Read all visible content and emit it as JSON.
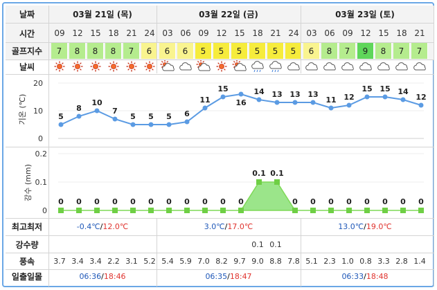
{
  "labels": {
    "date": "날짜",
    "time": "시간",
    "golf_index": "골프지수",
    "weather": "날씨",
    "minmax": "최고최저",
    "precip": "강수량",
    "wind": "풍속",
    "sunrise": "일출일몰"
  },
  "dates": [
    "03월 21일 (목)",
    "03월 22일 (금)",
    "03월 23일 (토)"
  ],
  "hours": [
    "09",
    "12",
    "15",
    "18",
    "21",
    "24",
    "03",
    "06",
    "09",
    "12",
    "15",
    "18",
    "21",
    "24",
    "03",
    "06",
    "09",
    "12",
    "15",
    "18",
    "21"
  ],
  "golf_index": [
    "7",
    "8",
    "8",
    "8",
    "7",
    "6",
    "6",
    "6",
    "5",
    "5",
    "5",
    "5",
    "5",
    "5",
    "6",
    "8",
    "7",
    "9",
    "8",
    "7",
    "7"
  ],
  "golf_colors": [
    "#b5ec8e",
    "#b5ec8e",
    "#b5ec8e",
    "#b5ec8e",
    "#b5ec8e",
    "#f9f48f",
    "#f9f48f",
    "#f9f48f",
    "#f6ec3c",
    "#f6ec3c",
    "#f6ec3c",
    "#f6ec3c",
    "#f6ec3c",
    "#f6ec3c",
    "#f9f48f",
    "#b5ec8e",
    "#b5ec8e",
    "#5fd65a",
    "#b5ec8e",
    "#b5ec8e",
    "#b5ec8e"
  ],
  "weather_icons": [
    "sun-icon",
    "sun-icon",
    "sun-icon",
    "sun-icon",
    "sun-icon",
    "sun-icon",
    "partly-cloudy-icon",
    "cloud-icon",
    "partly-cloudy-icon",
    "sun-icon",
    "partly-cloudy-icon",
    "rain-icon",
    "rain-icon",
    "cloud-icon",
    "cloud-icon",
    "cloud-icon",
    "cloud-icon",
    "cloud-icon",
    "cloud-icon",
    "cloud-icon",
    "cloud-icon"
  ],
  "temp_axis_label": "기온 (℃)",
  "precip_axis_label": "강수 (mm)",
  "chart_data": [
    {
      "type": "line",
      "x": [
        "09",
        "12",
        "15",
        "18",
        "21",
        "24",
        "03",
        "06",
        "09",
        "12",
        "15",
        "18",
        "21",
        "24",
        "03",
        "06",
        "09",
        "12",
        "15",
        "18",
        "21"
      ],
      "values": [
        5,
        8,
        10,
        7,
        5,
        5,
        5,
        6,
        11,
        15,
        16,
        14,
        13,
        13,
        13,
        11,
        12,
        15,
        15,
        14,
        12
      ],
      "ylabel": "기온 (℃)",
      "yticks": [
        "0",
        "10",
        "20"
      ],
      "ylim": [
        0,
        20
      ],
      "grid": true,
      "color": "#5b9be3"
    },
    {
      "type": "area",
      "x": [
        "09",
        "12",
        "15",
        "18",
        "21",
        "24",
        "03",
        "06",
        "09",
        "12",
        "15",
        "18",
        "21",
        "24",
        "03",
        "06",
        "09",
        "12",
        "15",
        "18",
        "21"
      ],
      "values": [
        0,
        0,
        0,
        0,
        0,
        0,
        0,
        0,
        0,
        0,
        0,
        0.1,
        0.1,
        0,
        0,
        0,
        0,
        0,
        0,
        0,
        0
      ],
      "value_labels": [
        "0",
        "0",
        "0",
        "0",
        "0",
        "0",
        "0",
        "0",
        "0",
        "0",
        "0",
        "0.1",
        "0.1",
        "0",
        "0",
        "0",
        "0",
        "0",
        "0",
        "0",
        "0"
      ],
      "ylabel": "강수 (mm)",
      "yticks": [
        "0",
        "0.1",
        "0.2"
      ],
      "ylim": [
        0,
        0.2
      ],
      "grid": true,
      "color": "#7ed957"
    }
  ],
  "minmax": [
    {
      "min": "-0.4℃",
      "sep": "/",
      "max": "12.0℃"
    },
    {
      "min": "3.0℃",
      "sep": "/",
      "max": "17.0℃"
    },
    {
      "min": "13.0℃",
      "sep": "/",
      "max": "19.0℃"
    }
  ],
  "precip_values": [
    "",
    "",
    "",
    "",
    "",
    "",
    "",
    "",
    "",
    "",
    "",
    "0.1",
    "0.1",
    "",
    "",
    "",
    "",
    "",
    "",
    "",
    ""
  ],
  "wind": [
    "3.7",
    "3.4",
    "3.4",
    "2.2",
    "3.1",
    "5.2",
    "5.4",
    "5.9",
    "7.0",
    "8.2",
    "9.7",
    "9.0",
    "8.8",
    "7.8",
    "5.1",
    "2.3",
    "1.0",
    "0.8",
    "3.3",
    "2.8",
    "1.4"
  ],
  "sun": [
    {
      "rise": "06:36",
      "sep": "/",
      "set": "18:46"
    },
    {
      "rise": "06:35",
      "sep": "/",
      "set": "18:47"
    },
    {
      "rise": "06:33",
      "sep": "/",
      "set": "18:48"
    }
  ],
  "colors": {
    "border": "#6aa7e6",
    "line": "#5b9be3",
    "rain": "#7ed957",
    "min": "#1f58b8",
    "max": "#e0332e"
  }
}
